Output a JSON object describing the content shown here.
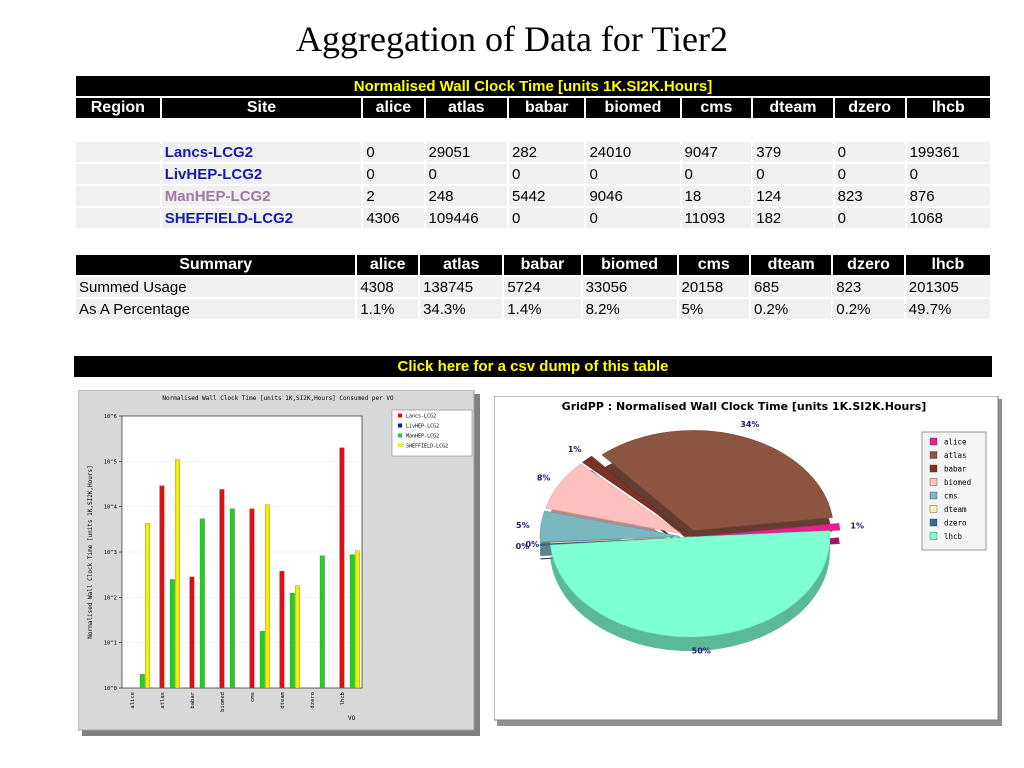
{
  "slide_title": "Aggregation of Data for Tier2",
  "main_table": {
    "header": "Normalised Wall Clock Time [units 1K.SI2K.Hours]",
    "columns": [
      "Region",
      "Site",
      "alice",
      "atlas",
      "babar",
      "biomed",
      "cms",
      "dteam",
      "dzero",
      "lhcb"
    ],
    "rows": [
      {
        "region": "",
        "site": "Lancs-LCG2",
        "values": [
          "0",
          "29051",
          "282",
          "24010",
          "9047",
          "379",
          "0",
          "199361"
        ]
      },
      {
        "region": "",
        "site": "LivHEP-LCG2",
        "values": [
          "0",
          "0",
          "0",
          "0",
          "0",
          "0",
          "0",
          "0"
        ]
      },
      {
        "region": "",
        "site": "ManHEP-LCG2",
        "values": [
          "2",
          "248",
          "5442",
          "9046",
          "18",
          "124",
          "823",
          "876"
        ]
      },
      {
        "region": "",
        "site": "SHEFFIELD-LCG2",
        "values": [
          "4306",
          "109446",
          "0",
          "0",
          "11093",
          "182",
          "0",
          "1068"
        ]
      }
    ]
  },
  "summary_table": {
    "columns": [
      "Summary",
      "alice",
      "atlas",
      "babar",
      "biomed",
      "cms",
      "dteam",
      "dzero",
      "lhcb"
    ],
    "rows": [
      {
        "label": "Summed Usage",
        "values": [
          "4308",
          "138745",
          "5724",
          "33056",
          "20158",
          "685",
          "823",
          "201305"
        ]
      },
      {
        "label": "As A Percentage",
        "values": [
          "1.1%",
          "34.3%",
          "1.4%",
          "8.2%",
          "5%",
          "0.2%",
          "0.2%",
          "49.7%"
        ]
      }
    ]
  },
  "csv_link": "Click here for a csv dump of this table",
  "colors": {
    "lancs": "#e01010",
    "livhep": "#1010d0",
    "manhep": "#20d020",
    "sheffield": "#f0f000"
  },
  "chart_data": [
    {
      "type": "bar",
      "title": "Normalised Wall Clock Time [units 1K,SI2K,Hours] Consumed per VO",
      "xlabel": "VO",
      "ylabel": "Normalised Wall Clock Time [units 1K,SI2K,Hours]",
      "yscale": "log",
      "ylim": [
        1,
        1000000
      ],
      "yticks": [
        "10^0",
        "10^1",
        "10^2",
        "10^3",
        "10^4",
        "10^5",
        "10^6"
      ],
      "categories": [
        "alice",
        "atlas",
        "babar",
        "biomed",
        "cms",
        "dteam",
        "dzero",
        "lhcb"
      ],
      "legend_position": "top-right",
      "series": [
        {
          "name": "Lancs-LCG2",
          "color": "#e01010",
          "values": [
            0,
            29051,
            282,
            24010,
            9047,
            379,
            0,
            199361
          ]
        },
        {
          "name": "LivHEP-LCG2",
          "color": "#1010d0",
          "values": [
            0,
            0,
            0,
            0,
            0,
            0,
            0,
            0
          ]
        },
        {
          "name": "ManHEP-LCG2",
          "color": "#20d020",
          "values": [
            2,
            248,
            5442,
            9046,
            18,
            124,
            823,
            876
          ]
        },
        {
          "name": "SHEFFIELD-LCG2",
          "color": "#f0f000",
          "values": [
            4306,
            109446,
            0,
            0,
            11093,
            182,
            0,
            1068
          ]
        }
      ]
    },
    {
      "type": "pie",
      "title": "GridPP : Normalised Wall Clock Time [units 1K.SI2K.Hours]",
      "legend_position": "right",
      "slices": [
        {
          "label": "alice",
          "value": 4308,
          "pct_label": "1%",
          "color": "#e8208c"
        },
        {
          "label": "atlas",
          "value": 138745,
          "pct_label": "34%",
          "color": "#8b5542"
        },
        {
          "label": "babar",
          "value": 5724,
          "pct_label": "1%",
          "color": "#7a3326"
        },
        {
          "label": "biomed",
          "value": 33056,
          "pct_label": "8%",
          "color": "#ffc0c0"
        },
        {
          "label": "cms",
          "value": 20158,
          "pct_label": "5%",
          "color": "#7ab8c0"
        },
        {
          "label": "dteam",
          "value": 685,
          "pct_label": "0%",
          "color": "#fff0c0"
        },
        {
          "label": "dzero",
          "value": 823,
          "pct_label": "0%",
          "color": "#3a6a8c"
        },
        {
          "label": "lhcb",
          "value": 201305,
          "pct_label": "50%",
          "color": "#7fffd4"
        }
      ]
    }
  ]
}
